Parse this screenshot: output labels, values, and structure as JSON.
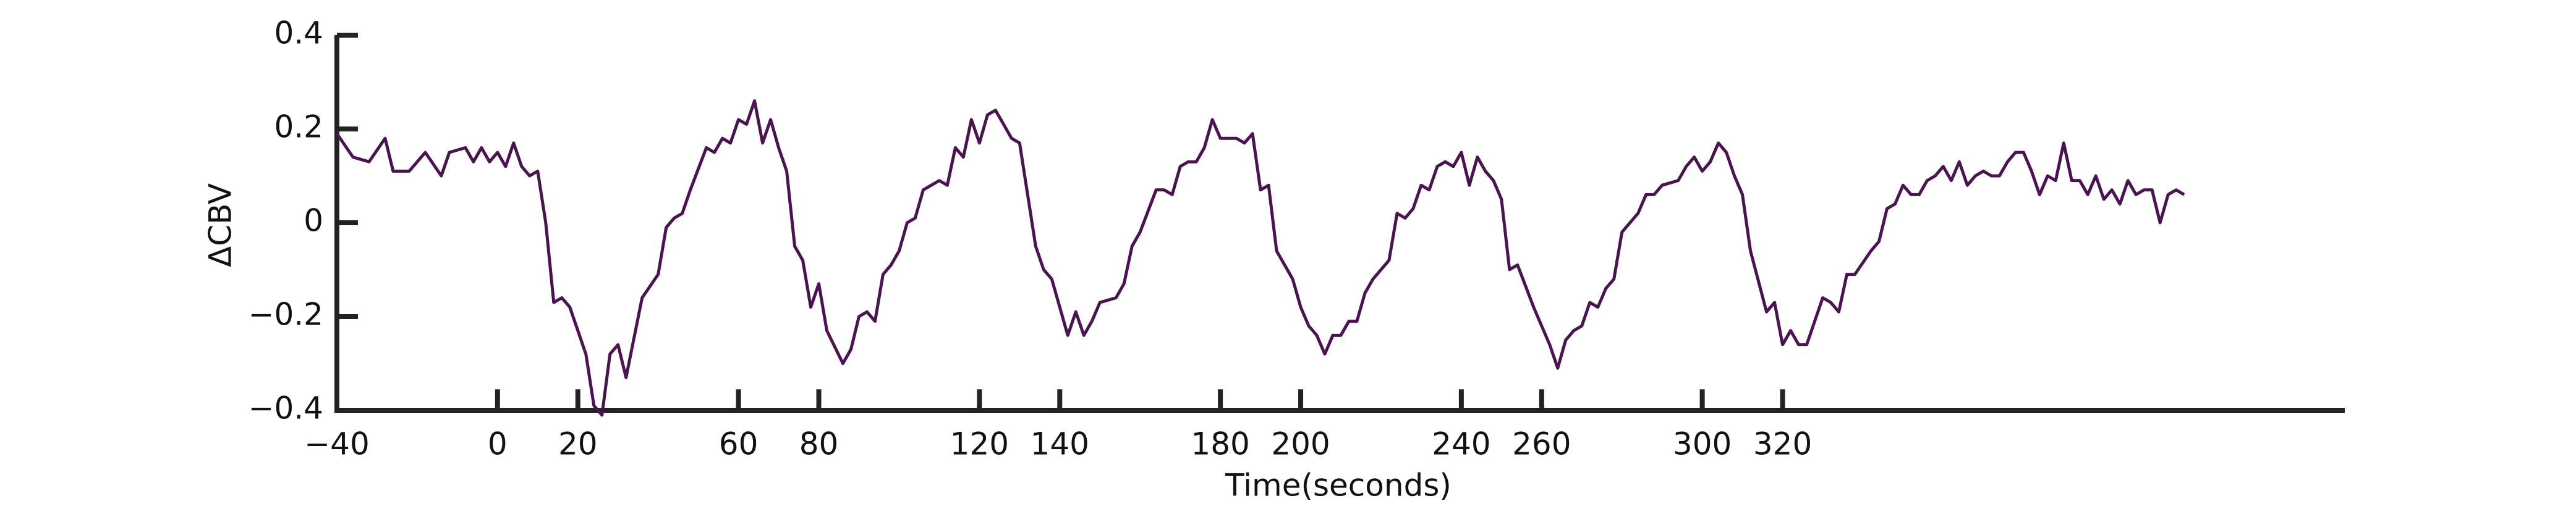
{
  "chart_data": {
    "type": "line",
    "x_label": "Time(seconds)",
    "y_label": "ΔCBV",
    "xlim": [
      -40,
      460
    ],
    "ylim": [
      -0.4,
      0.4
    ],
    "xticks": [
      {
        "value": -40,
        "label": "−40"
      },
      0,
      20,
      60,
      80,
      120,
      140,
      180,
      200,
      240,
      260,
      300,
      320
    ],
    "yticks": [
      {
        "value": -0.4,
        "label": "−0.4"
      },
      {
        "value": -0.2,
        "label": "−0.2"
      },
      0,
      0.2,
      0.4
    ],
    "series": [
      {
        "color": "#4a1450",
        "x": [
          -40,
          -36,
          -32,
          -28,
          -26,
          -22,
          -18,
          -14,
          -12,
          -8,
          -6,
          -4,
          -2,
          0,
          2,
          4,
          6,
          8,
          10,
          12,
          14,
          16,
          18,
          22,
          24,
          26,
          28,
          30,
          32,
          36,
          40,
          42,
          44,
          46,
          48,
          52,
          54,
          56,
          58,
          60,
          62,
          64,
          66,
          68,
          70,
          72,
          74,
          76,
          78,
          80,
          82,
          86,
          88,
          90,
          92,
          94,
          96,
          98,
          100,
          102,
          104,
          106,
          108,
          110,
          112,
          114,
          116,
          118,
          120,
          122,
          124,
          126,
          128,
          130,
          132,
          134,
          136,
          138,
          140,
          142,
          144,
          146,
          148,
          150,
          154,
          156,
          158,
          160,
          164,
          166,
          168,
          170,
          172,
          174,
          176,
          178,
          180,
          184,
          186,
          188,
          190,
          192,
          194,
          198,
          200,
          202,
          204,
          206,
          208,
          210,
          212,
          214,
          216,
          218,
          222,
          224,
          226,
          228,
          230,
          232,
          234,
          236,
          238,
          240,
          242,
          244,
          246,
          248,
          250,
          252,
          254,
          258,
          260,
          262,
          264,
          266,
          268,
          270,
          272,
          274,
          276,
          278,
          280,
          282,
          284,
          286,
          288,
          290,
          294,
          296,
          298,
          300,
          302,
          304,
          306,
          308,
          310,
          312,
          316,
          318,
          320,
          322,
          324,
          326,
          328,
          330,
          332,
          334,
          336,
          338,
          342,
          344,
          346,
          348,
          350,
          352,
          354,
          356,
          358,
          360,
          362,
          364,
          366,
          368,
          370,
          372,
          374,
          376,
          378,
          380,
          382,
          384,
          386,
          388,
          390,
          392,
          394,
          396,
          398,
          400,
          402,
          404,
          406,
          408,
          410,
          412,
          414,
          416,
          418,
          420
        ],
        "values": [
          0.19,
          0.14,
          0.13,
          0.18,
          0.11,
          0.11,
          0.15,
          0.1,
          0.15,
          0.16,
          0.13,
          0.16,
          0.13,
          0.15,
          0.12,
          0.17,
          0.12,
          0.1,
          0.11,
          0.0,
          -0.17,
          -0.16,
          -0.18,
          -0.28,
          -0.39,
          -0.41,
          -0.28,
          -0.26,
          -0.33,
          -0.16,
          -0.11,
          -0.01,
          0.01,
          0.02,
          0.07,
          0.16,
          0.15,
          0.18,
          0.17,
          0.22,
          0.21,
          0.26,
          0.17,
          0.22,
          0.16,
          0.11,
          -0.05,
          -0.08,
          -0.18,
          -0.13,
          -0.23,
          -0.3,
          -0.27,
          -0.2,
          -0.19,
          -0.21,
          -0.11,
          -0.09,
          -0.06,
          0.0,
          0.01,
          0.07,
          0.08,
          0.09,
          0.08,
          0.16,
          0.14,
          0.22,
          0.17,
          0.23,
          0.24,
          0.21,
          0.18,
          0.17,
          0.06,
          -0.05,
          -0.1,
          -0.12,
          -0.18,
          -0.24,
          -0.19,
          -0.24,
          -0.21,
          -0.17,
          -0.16,
          -0.13,
          -0.05,
          -0.02,
          0.07,
          0.07,
          0.06,
          0.12,
          0.13,
          0.13,
          0.16,
          0.22,
          0.18,
          0.18,
          0.17,
          0.19,
          0.07,
          0.08,
          -0.06,
          -0.12,
          -0.18,
          -0.22,
          -0.24,
          -0.28,
          -0.24,
          -0.24,
          -0.21,
          -0.21,
          -0.15,
          -0.12,
          -0.08,
          0.02,
          0.01,
          0.03,
          0.08,
          0.07,
          0.12,
          0.13,
          0.12,
          0.15,
          0.08,
          0.14,
          0.11,
          0.09,
          0.05,
          -0.1,
          -0.09,
          -0.18,
          -0.22,
          -0.26,
          -0.31,
          -0.25,
          -0.23,
          -0.22,
          -0.17,
          -0.18,
          -0.14,
          -0.12,
          -0.02,
          0.0,
          0.02,
          0.06,
          0.06,
          0.08,
          0.09,
          0.12,
          0.14,
          0.11,
          0.13,
          0.17,
          0.15,
          0.1,
          0.06,
          -0.06,
          -0.19,
          -0.17,
          -0.26,
          -0.23,
          -0.26,
          -0.26,
          -0.21,
          -0.16,
          -0.17,
          -0.19,
          -0.11,
          -0.11,
          -0.06,
          -0.04,
          0.03,
          0.04,
          0.08,
          0.06,
          0.06,
          0.09,
          0.1,
          0.12,
          0.09,
          0.13,
          0.08,
          0.1,
          0.11,
          0.1,
          0.1,
          0.13,
          0.15,
          0.15,
          0.11,
          0.06,
          0.1,
          0.09,
          0.17,
          0.09,
          0.09,
          0.06,
          0.1,
          0.05,
          0.07,
          0.04,
          0.09,
          0.06,
          0.07,
          0.07,
          0.0,
          0.06,
          0.07,
          0.06
        ]
      }
    ]
  }
}
